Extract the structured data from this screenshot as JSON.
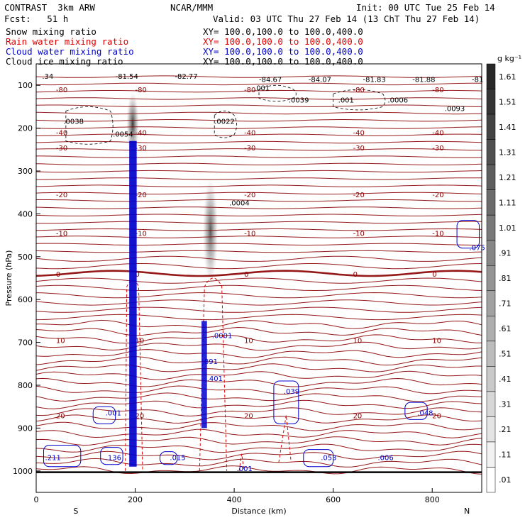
{
  "header": {
    "model": "CONTRAST  3km ARW",
    "forecast": "Fcst:   51 h",
    "center": "NCAR/MMM",
    "init": "Init: 00 UTC Tue 25 Feb 14",
    "valid": "Valid: 03 UTC Thu 27 Feb 14 (13 ChT Thu 27 Feb 14)"
  },
  "fields": [
    {
      "name": "Snow mixing ratio",
      "color": "#000000",
      "xy": "XY= 100.0,100.0 to 100.0,400.0"
    },
    {
      "name": "Rain water mixing ratio",
      "color": "#e00000",
      "xy": "XY= 100.0,100.0 to 100.0,400.0"
    },
    {
      "name": "Cloud water mixing ratio",
      "color": "#0000cc",
      "xy": "XY= 100.0,100.0 to 100.0,400.0"
    },
    {
      "name": "Cloud ice mixing ratio",
      "color": "#000000",
      "xy": "XY= 100.0,100.0 to 100.0,400.0"
    }
  ],
  "chart_data": {
    "type": "cross-section",
    "xlabel": "Distance (km)",
    "ylabel": "Pressure (hPa)",
    "xlim": [
      0,
      900
    ],
    "ylim": [
      1050,
      50
    ],
    "x_ticks": [
      "0",
      "200",
      "400",
      "600",
      "800"
    ],
    "y_ticks": [
      "100",
      "200",
      "300",
      "400",
      "500",
      "600",
      "700",
      "800",
      "900",
      "1000"
    ],
    "left_end": "S",
    "right_end": "N",
    "colorbar": {
      "unit": "g kg⁻¹",
      "levels": [
        "1.61",
        "1.51",
        "1.41",
        "1.31",
        "1.21",
        "1.11",
        "1.01",
        ".91",
        ".81",
        ".71",
        ".61",
        ".51",
        ".41",
        ".31",
        ".21",
        ".11",
        ".01"
      ]
    },
    "temperature_contours": [
      {
        "label": "-80",
        "p": 110
      },
      {
        "label": "-40",
        "p": 210
      },
      {
        "label": "-30",
        "p": 245
      },
      {
        "label": "-20",
        "p": 355
      },
      {
        "label": "-10",
        "p": 445
      },
      {
        "label": "0",
        "p": 540
      },
      {
        "label": "10",
        "p": 695
      },
      {
        "label": "20",
        "p": 870
      }
    ],
    "annotations": [
      {
        "text": "-81.54",
        "x": 160,
        "p": 85
      },
      {
        "text": "-82.77",
        "x": 280,
        "p": 85
      },
      {
        "text": "-84.67",
        "x": 450,
        "p": 92
      },
      {
        "text": "-84.07",
        "x": 550,
        "p": 92
      },
      {
        "text": "-81.83",
        "x": 660,
        "p": 92
      },
      {
        "text": "-81.88",
        "x": 760,
        "p": 92
      },
      {
        "text": ".34",
        "x": 12,
        "p": 85
      },
      {
        "text": "-81",
        "x": 880,
        "p": 92
      },
      {
        "text": ".001",
        "x": 440,
        "p": 112
      },
      {
        "text": ".0039",
        "x": 510,
        "p": 140
      },
      {
        "text": ".001",
        "x": 610,
        "p": 140
      },
      {
        "text": ".0006",
        "x": 710,
        "p": 140
      },
      {
        "text": ".0093",
        "x": 825,
        "p": 160
      },
      {
        "text": ".0038",
        "x": 55,
        "p": 190
      },
      {
        "text": ".0022",
        "x": 360,
        "p": 190
      },
      {
        "text": ".0054",
        "x": 155,
        "p": 220
      },
      {
        "text": ".0004",
        "x": 390,
        "p": 380
      },
      {
        "text": ".075",
        "x": 875,
        "p": 485
      },
      {
        "text": ".001",
        "x": 140,
        "p": 870
      },
      {
        "text": ".048",
        "x": 770,
        "p": 870
      },
      {
        "text": ".039",
        "x": 500,
        "p": 820
      },
      {
        "text": ".211",
        "x": 18,
        "p": 975
      },
      {
        "text": ".136",
        "x": 140,
        "p": 975
      },
      {
        "text": ".015",
        "x": 270,
        "p": 975
      },
      {
        "text": ".053",
        "x": 575,
        "p": 975
      },
      {
        "text": ".006",
        "x": 690,
        "p": 975
      },
      {
        "text": ".001",
        "x": 405,
        "p": 1000
      },
      {
        "text": ".891",
        "x": 335,
        "p": 750
      },
      {
        "text": ".401",
        "x": 345,
        "p": 790
      },
      {
        "text": ".0001",
        "x": 355,
        "p": 690
      }
    ]
  }
}
